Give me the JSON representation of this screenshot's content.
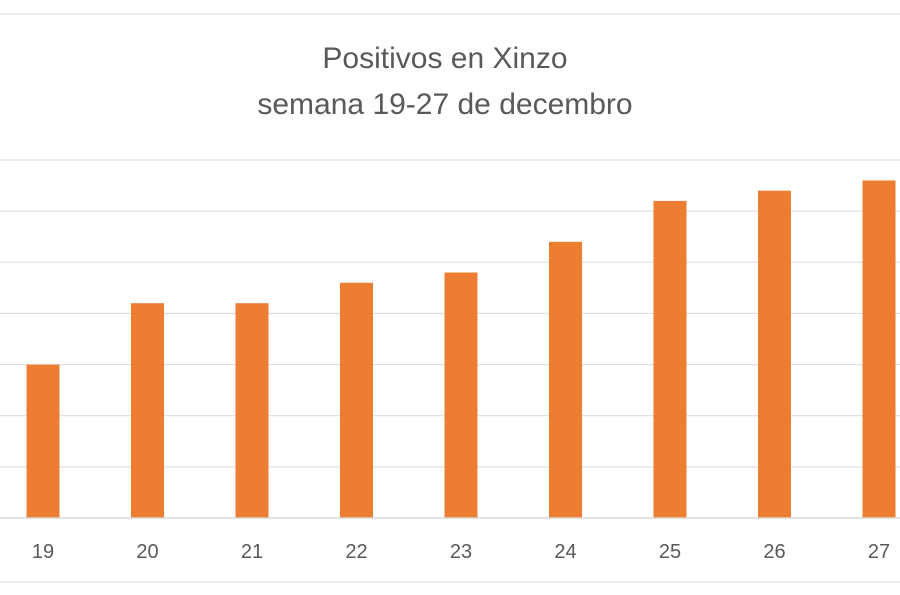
{
  "chart_data": {
    "type": "bar",
    "title": "Positivos en Xinzo",
    "subtitle": "semana 19-27 de decembro",
    "xlabel": "",
    "ylabel": "",
    "categories": [
      "19",
      "20",
      "21",
      "22",
      "23",
      "24",
      "25",
      "26",
      "27"
    ],
    "values": [
      15,
      21,
      21,
      23,
      24,
      27,
      31,
      32,
      33
    ],
    "ylim": [
      0,
      35
    ],
    "grid": true,
    "legend": "none",
    "colors": {
      "bar": "#ED7D31",
      "grid": "#D9D9D9",
      "text": "#595959"
    }
  }
}
